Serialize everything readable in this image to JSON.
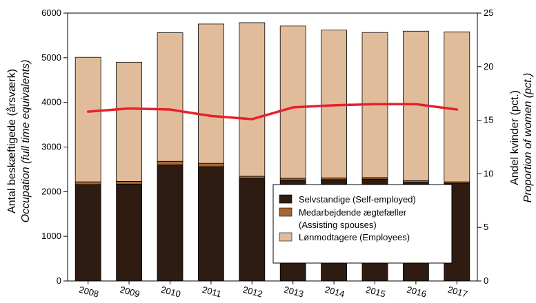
{
  "chart_data": {
    "type": "bar",
    "stacked": true,
    "categories": [
      "2008",
      "2009",
      "2010",
      "2011",
      "2012",
      "2013",
      "2014",
      "2015",
      "2016",
      "2017"
    ],
    "series": [
      {
        "name": "Selvstandige (Self-employed)",
        "color": "#2e1c12",
        "values": [
          2160,
          2170,
          2600,
          2560,
          2300,
          2260,
          2270,
          2280,
          2210,
          2190
        ]
      },
      {
        "name": "Medarbejdende ægtefæller (Assisting spouses)",
        "color": "#a8652e",
        "values": [
          60,
          60,
          80,
          75,
          45,
          40,
          40,
          35,
          35,
          30
        ]
      },
      {
        "name": "Lønmodtagere (Employees)",
        "color": "#e0bc9b",
        "values": [
          2790,
          2670,
          2880,
          3120,
          3440,
          3410,
          3310,
          3250,
          3350,
          3360
        ]
      }
    ],
    "line_series": {
      "name": "Andel kvinder (pct.)",
      "color": "#e8202a",
      "axis": "right",
      "values": [
        15.8,
        16.1,
        16.0,
        15.4,
        15.1,
        16.2,
        16.4,
        16.5,
        16.5,
        16.0
      ]
    },
    "y_left": {
      "label": "Antal beskæftigede (årsværk)",
      "label_en": "Occupation (full time equivalents)",
      "ylim": [
        0,
        6000
      ],
      "ticks": [
        "0",
        "1000",
        "2000",
        "3000",
        "4000",
        "5000",
        "6000"
      ]
    },
    "y_right": {
      "label": "Andel kvinder (pct.)",
      "label_en": "Proportion of women (pct.)",
      "ylim": [
        0,
        25
      ],
      "ticks": [
        "0",
        "5",
        "10",
        "15",
        "20",
        "25"
      ]
    },
    "legend": {
      "placement": "bottom-right",
      "items": [
        {
          "line1": "Selvstandige (Self-employed)",
          "line2": "",
          "color": "#2e1c12"
        },
        {
          "line1": "Medarbejdende ægtefæller",
          "line2": "(Assisting spouses)",
          "color": "#a8652e"
        },
        {
          "line1": "Lønmodtagere (Employees)",
          "line2": "",
          "color": "#e0bc9b"
        }
      ]
    },
    "grid": false
  }
}
